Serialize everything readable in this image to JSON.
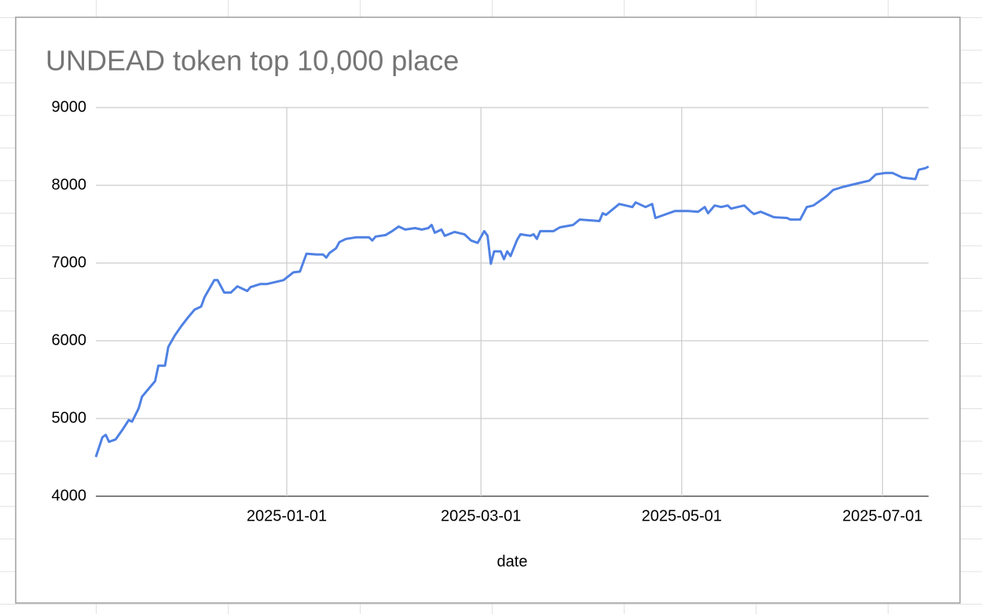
{
  "chart_data": {
    "type": "line",
    "title": "UNDEAD token top 10,000 place",
    "x_label": "date",
    "color": "#4f81e4",
    "grid": true,
    "x": [
      "2024-11-04",
      "2024-11-06",
      "2024-11-07",
      "2024-11-08",
      "2024-11-10",
      "2024-11-12",
      "2024-11-14",
      "2024-11-15",
      "2024-11-17",
      "2024-11-18",
      "2024-11-20",
      "2024-11-22",
      "2024-11-23",
      "2024-11-25",
      "2024-11-26",
      "2024-11-28",
      "2024-11-30",
      "2024-12-02",
      "2024-12-04",
      "2024-12-06",
      "2024-12-07",
      "2024-12-10",
      "2024-12-11",
      "2024-12-13",
      "2024-12-15",
      "2024-12-17",
      "2024-12-20",
      "2024-12-21",
      "2024-12-24",
      "2024-12-26",
      "2024-12-31",
      "2025-01-03",
      "2025-01-05",
      "2025-01-07",
      "2025-01-10",
      "2025-01-12",
      "2025-01-13",
      "2025-01-14",
      "2025-01-16",
      "2025-01-17",
      "2025-01-19",
      "2025-01-22",
      "2025-01-26",
      "2025-01-27",
      "2025-01-28",
      "2025-01-31",
      "2025-02-02",
      "2025-02-04",
      "2025-02-06",
      "2025-02-09",
      "2025-02-11",
      "2025-02-13",
      "2025-02-14",
      "2025-02-15",
      "2025-02-17",
      "2025-02-18",
      "2025-02-21",
      "2025-02-24",
      "2025-02-26",
      "2025-02-28",
      "2025-03-02",
      "2025-03-03",
      "2025-03-04",
      "2025-03-05",
      "2025-03-07",
      "2025-03-08",
      "2025-03-09",
      "2025-03-10",
      "2025-03-12",
      "2025-03-13",
      "2025-03-16",
      "2025-03-17",
      "2025-03-18",
      "2025-03-19",
      "2025-03-23",
      "2025-03-25",
      "2025-03-29",
      "2025-03-31",
      "2025-04-06",
      "2025-04-07",
      "2025-04-08",
      "2025-04-12",
      "2025-04-14",
      "2025-04-16",
      "2025-04-17",
      "2025-04-20",
      "2025-04-22",
      "2025-04-23",
      "2025-04-27",
      "2025-04-29",
      "2025-05-03",
      "2025-05-06",
      "2025-05-08",
      "2025-05-09",
      "2025-05-11",
      "2025-05-13",
      "2025-05-15",
      "2025-05-16",
      "2025-05-20",
      "2025-05-22",
      "2025-05-23",
      "2025-05-25",
      "2025-05-29",
      "2025-06-02",
      "2025-06-03",
      "2025-06-06",
      "2025-06-08",
      "2025-06-10",
      "2025-06-12",
      "2025-06-14",
      "2025-06-16",
      "2025-06-19",
      "2025-06-23",
      "2025-06-27",
      "2025-06-29",
      "2025-07-02",
      "2025-07-04",
      "2025-07-07",
      "2025-07-11",
      "2025-07-12",
      "2025-07-14",
      "2025-07-15"
    ],
    "values": [
      4505,
      4760,
      4790,
      4700,
      4730,
      4850,
      4980,
      4960,
      5130,
      5280,
      5380,
      5480,
      5680,
      5680,
      5920,
      6070,
      6190,
      6300,
      6400,
      6440,
      6560,
      6780,
      6780,
      6620,
      6620,
      6700,
      6640,
      6690,
      6730,
      6730,
      6780,
      6880,
      6890,
      7120,
      7110,
      7110,
      7070,
      7130,
      7190,
      7270,
      7310,
      7330,
      7330,
      7290,
      7340,
      7360,
      7410,
      7470,
      7430,
      7450,
      7430,
      7450,
      7490,
      7390,
      7430,
      7350,
      7400,
      7370,
      7290,
      7260,
      7410,
      7350,
      6990,
      7150,
      7150,
      7050,
      7150,
      7090,
      7300,
      7370,
      7350,
      7370,
      7310,
      7410,
      7410,
      7460,
      7490,
      7560,
      7540,
      7640,
      7620,
      7760,
      7740,
      7720,
      7780,
      7720,
      7760,
      7580,
      7640,
      7670,
      7670,
      7660,
      7720,
      7640,
      7740,
      7720,
      7740,
      7700,
      7740,
      7660,
      7630,
      7660,
      7590,
      7580,
      7560,
      7560,
      7720,
      7740,
      7800,
      7860,
      7940,
      7980,
      8020,
      8060,
      8140,
      8160,
      8160,
      8100,
      8080,
      8200,
      8220,
      8240
    ],
    "xlim": [
      "2024-11-04",
      "2025-07-15"
    ],
    "xticks": [
      "2025-01-01",
      "2025-03-01",
      "2025-05-01",
      "2025-07-01"
    ],
    "ylim": [
      4000,
      9000
    ],
    "yticks": [
      4000,
      5000,
      6000,
      7000,
      8000,
      9000
    ]
  }
}
